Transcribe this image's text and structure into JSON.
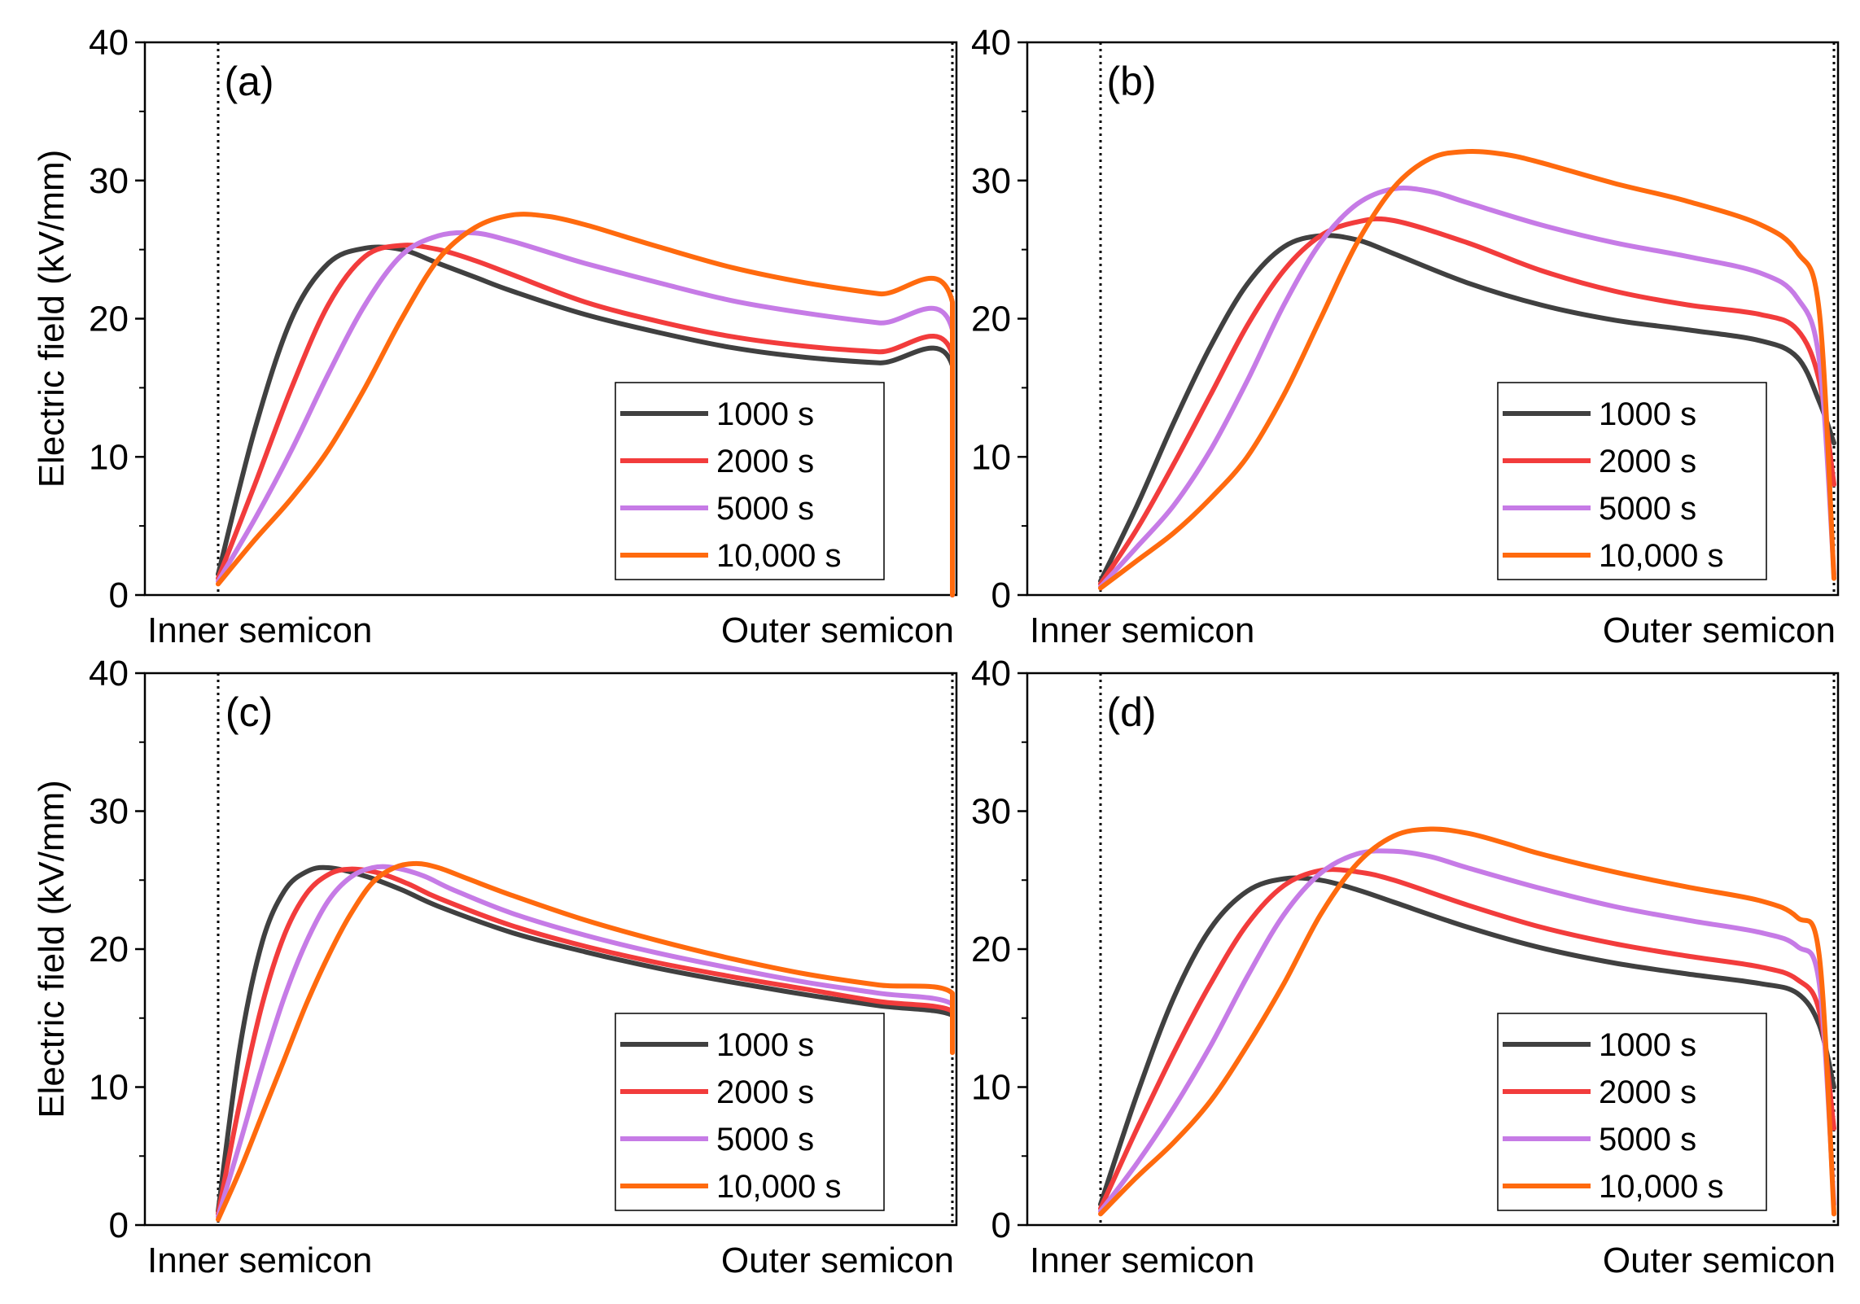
{
  "colors": {
    "1000 s": "#404040",
    "2000 s": "#f23c3c",
    "5000 s": "#c67be6",
    "10,000 s": "#ff6a0e"
  },
  "chart_data": [
    {
      "type": "line",
      "panel": "(a)",
      "ylabel": "Electric field (kV/mm)",
      "x_start_label": "Inner semicon",
      "x_end_label": "Outer semicon",
      "xlim": [
        0,
        1
      ],
      "ylim": [
        0,
        40
      ],
      "yticks": [
        "0",
        "10",
        "20",
        "30",
        "40"
      ],
      "legend": [
        "1000 s",
        "2000 s",
        "5000 s",
        "10,000 s"
      ],
      "series": [
        {
          "name": "1000 s",
          "x": [
            0,
            0.05,
            0.1,
            0.15,
            0.2,
            0.25,
            0.3,
            0.35,
            0.4,
            0.5,
            0.6,
            0.7,
            0.8,
            0.9,
            1,
            1
          ],
          "y": [
            1.5,
            12,
            20,
            24,
            25.1,
            25,
            24,
            23,
            22,
            20.3,
            19,
            17.9,
            17.2,
            16.8,
            16.6,
            0
          ]
        },
        {
          "name": "2000 s",
          "x": [
            0,
            0.05,
            0.1,
            0.15,
            0.2,
            0.25,
            0.3,
            0.35,
            0.4,
            0.5,
            0.6,
            0.7,
            0.8,
            0.9,
            1,
            1
          ],
          "y": [
            1.2,
            8,
            15,
            21,
            24.5,
            25.3,
            25,
            24.2,
            23.2,
            21.2,
            19.8,
            18.7,
            18,
            17.6,
            17.4,
            0
          ]
        },
        {
          "name": "5000 s",
          "x": [
            0,
            0.05,
            0.1,
            0.15,
            0.2,
            0.25,
            0.3,
            0.35,
            0.4,
            0.45,
            0.5,
            0.6,
            0.7,
            0.8,
            0.9,
            1,
            1
          ],
          "y": [
            1,
            5.5,
            10.5,
            16,
            21,
            24.6,
            26,
            26.2,
            25.6,
            24.8,
            24,
            22.6,
            21.3,
            20.4,
            19.7,
            19.2,
            0
          ]
        },
        {
          "name": "10,000 s",
          "x": [
            0,
            0.05,
            0.1,
            0.15,
            0.2,
            0.25,
            0.3,
            0.35,
            0.4,
            0.45,
            0.5,
            0.55,
            0.6,
            0.7,
            0.8,
            0.9,
            1,
            1
          ],
          "y": [
            0.8,
            4,
            7,
            10.5,
            15,
            20,
            24.3,
            26.6,
            27.5,
            27.4,
            26.8,
            26,
            25.2,
            23.7,
            22.6,
            21.8,
            21.2,
            0
          ]
        }
      ]
    },
    {
      "type": "line",
      "panel": "(b)",
      "ylabel": "",
      "x_start_label": "Inner semicon",
      "x_end_label": "Outer semicon",
      "xlim": [
        0,
        1
      ],
      "ylim": [
        0,
        40
      ],
      "yticks": [
        "0",
        "10",
        "20",
        "30",
        "40"
      ],
      "legend": [
        "1000 s",
        "2000 s",
        "5000 s",
        "10,000 s"
      ],
      "series": [
        {
          "name": "1000 s",
          "x": [
            0,
            0.05,
            0.1,
            0.15,
            0.2,
            0.25,
            0.3,
            0.35,
            0.4,
            0.5,
            0.6,
            0.7,
            0.8,
            0.9,
            0.95,
            0.98,
            1
          ],
          "y": [
            1,
            6.5,
            12.5,
            18,
            22.5,
            25.2,
            26,
            25.7,
            24.7,
            22.6,
            21,
            19.9,
            19.2,
            18.4,
            17.2,
            14,
            11
          ]
        },
        {
          "name": "2000 s",
          "x": [
            0,
            0.05,
            0.1,
            0.15,
            0.2,
            0.25,
            0.3,
            0.35,
            0.4,
            0.5,
            0.6,
            0.7,
            0.8,
            0.9,
            0.95,
            0.98,
            1
          ],
          "y": [
            0.8,
            4.8,
            9.5,
            14.5,
            19.5,
            23.5,
            26,
            27,
            27.1,
            25.5,
            23.5,
            22,
            21,
            20.3,
            19.2,
            15.5,
            8
          ]
        },
        {
          "name": "5000 s",
          "x": [
            0,
            0.05,
            0.1,
            0.15,
            0.2,
            0.25,
            0.3,
            0.35,
            0.4,
            0.45,
            0.5,
            0.6,
            0.7,
            0.8,
            0.9,
            0.95,
            0.98,
            1
          ],
          "y": [
            0.6,
            3.5,
            6.5,
            10.5,
            15.5,
            21,
            25.5,
            28.3,
            29.4,
            29.2,
            28.4,
            26.8,
            25.5,
            24.5,
            23.3,
            21.5,
            17,
            1.5
          ]
        },
        {
          "name": "10,000 s",
          "x": [
            0,
            0.05,
            0.1,
            0.15,
            0.2,
            0.25,
            0.3,
            0.35,
            0.4,
            0.45,
            0.5,
            0.55,
            0.6,
            0.7,
            0.8,
            0.9,
            0.95,
            0.98,
            1
          ],
          "y": [
            0.5,
            2.5,
            4.5,
            7,
            10,
            14.5,
            20,
            25.5,
            29.5,
            31.6,
            32.1,
            31.9,
            31.3,
            29.8,
            28.5,
            26.8,
            24.8,
            20.5,
            1.2
          ]
        }
      ]
    },
    {
      "type": "line",
      "panel": "(c)",
      "ylabel": "Electric field (kV/mm)",
      "x_start_label": "Inner semicon",
      "x_end_label": "Outer semicon",
      "xlim": [
        0,
        1
      ],
      "ylim": [
        0,
        40
      ],
      "yticks": [
        "0",
        "10",
        "20",
        "30",
        "40"
      ],
      "legend": [
        "1000 s",
        "2000 s",
        "5000 s",
        "10,000 s"
      ],
      "series": [
        {
          "name": "1000 s",
          "x": [
            0,
            0.03,
            0.06,
            0.09,
            0.12,
            0.15,
            0.2,
            0.25,
            0.3,
            0.4,
            0.5,
            0.6,
            0.7,
            0.8,
            0.9,
            1,
            1
          ],
          "y": [
            1,
            13,
            20.5,
            24.2,
            25.6,
            25.9,
            25.3,
            24.3,
            23.1,
            21.2,
            19.8,
            18.6,
            17.6,
            16.7,
            15.9,
            15.2,
            13
          ]
        },
        {
          "name": "2000 s",
          "x": [
            0,
            0.03,
            0.06,
            0.09,
            0.12,
            0.15,
            0.18,
            0.22,
            0.26,
            0.3,
            0.4,
            0.5,
            0.6,
            0.7,
            0.8,
            0.9,
            1,
            1
          ],
          "y": [
            0.8,
            9,
            16,
            21,
            24,
            25.4,
            25.8,
            25.5,
            24.7,
            23.7,
            21.7,
            20.2,
            19,
            18,
            17.1,
            16.2,
            15.5,
            13
          ]
        },
        {
          "name": "5000 s",
          "x": [
            0,
            0.03,
            0.06,
            0.09,
            0.12,
            0.15,
            0.18,
            0.21,
            0.24,
            0.28,
            0.32,
            0.4,
            0.5,
            0.6,
            0.7,
            0.8,
            0.9,
            1,
            1
          ],
          "y": [
            0.6,
            6,
            11.5,
            16.5,
            20.5,
            23.5,
            25.2,
            25.9,
            25.9,
            25.3,
            24.3,
            22.6,
            21,
            19.7,
            18.6,
            17.6,
            16.8,
            16,
            13
          ]
        },
        {
          "name": "10,000 s",
          "x": [
            0,
            0.03,
            0.06,
            0.09,
            0.12,
            0.15,
            0.18,
            0.21,
            0.24,
            0.27,
            0.3,
            0.34,
            0.4,
            0.5,
            0.6,
            0.7,
            0.8,
            0.9,
            1,
            1
          ],
          "y": [
            0.4,
            4,
            8,
            12,
            16,
            19.5,
            22.5,
            24.8,
            25.9,
            26.2,
            25.9,
            25.1,
            23.9,
            22.1,
            20.6,
            19.3,
            18.2,
            17.4,
            16.8,
            12.5
          ]
        }
      ]
    },
    {
      "type": "line",
      "panel": "(d)",
      "ylabel": "",
      "x_start_label": "Inner semicon",
      "x_end_label": "Outer semicon",
      "xlim": [
        0,
        1
      ],
      "ylim": [
        0,
        40
      ],
      "yticks": [
        "0",
        "10",
        "20",
        "30",
        "40"
      ],
      "legend": [
        "1000 s",
        "2000 s",
        "5000 s",
        "10,000 s"
      ],
      "series": [
        {
          "name": "1000 s",
          "x": [
            0,
            0.05,
            0.1,
            0.15,
            0.2,
            0.25,
            0.3,
            0.35,
            0.4,
            0.5,
            0.6,
            0.7,
            0.8,
            0.9,
            0.95,
            0.98,
            1
          ],
          "y": [
            1.5,
            9.5,
            16.5,
            21.5,
            24.2,
            25.1,
            25,
            24.3,
            23.4,
            21.6,
            20.1,
            19,
            18.2,
            17.5,
            16.8,
            14.5,
            10
          ]
        },
        {
          "name": "2000 s",
          "x": [
            0,
            0.05,
            0.1,
            0.15,
            0.2,
            0.25,
            0.3,
            0.35,
            0.4,
            0.5,
            0.6,
            0.7,
            0.8,
            0.9,
            0.95,
            0.98,
            1
          ],
          "y": [
            1.2,
            7,
            12.5,
            17.5,
            21.8,
            24.6,
            25.7,
            25.6,
            25,
            23.2,
            21.6,
            20.4,
            19.5,
            18.7,
            17.8,
            15.5,
            7
          ]
        },
        {
          "name": "5000 s",
          "x": [
            0,
            0.05,
            0.1,
            0.15,
            0.2,
            0.25,
            0.3,
            0.35,
            0.4,
            0.45,
            0.5,
            0.6,
            0.7,
            0.8,
            0.9,
            0.95,
            0.98,
            1
          ],
          "y": [
            1,
            4.5,
            8.5,
            13,
            18,
            22.5,
            25.5,
            26.9,
            27.1,
            26.7,
            25.9,
            24.4,
            23.1,
            22.1,
            21.2,
            20.2,
            17.5,
            1.5
          ]
        },
        {
          "name": "10,000 s",
          "x": [
            0,
            0.05,
            0.1,
            0.15,
            0.2,
            0.25,
            0.3,
            0.35,
            0.4,
            0.45,
            0.5,
            0.55,
            0.6,
            0.7,
            0.8,
            0.9,
            0.95,
            0.98,
            1
          ],
          "y": [
            0.8,
            3.5,
            6,
            9,
            13,
            17.5,
            22.5,
            26.2,
            28.2,
            28.7,
            28.4,
            27.7,
            26.9,
            25.6,
            24.5,
            23.5,
            22.3,
            19.5,
            0.8
          ]
        }
      ]
    }
  ]
}
